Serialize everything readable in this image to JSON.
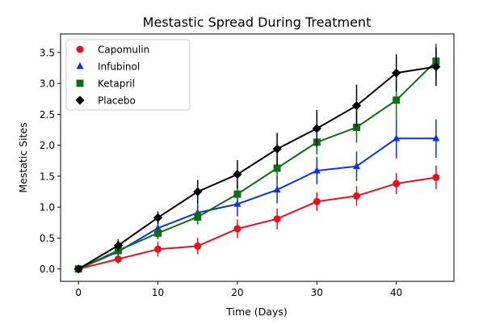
{
  "chart_data": {
    "type": "line",
    "title": "Mestastic Spread During Treatment",
    "xlabel": "Time (Days)",
    "ylabel": "Mestatic Sites",
    "xlim": [
      -2.25,
      47.25
    ],
    "ylim": [
      -0.2,
      3.8
    ],
    "x_ticks": [
      0,
      10,
      20,
      30,
      40
    ],
    "y_ticks": [
      0.0,
      0.5,
      1.0,
      1.5,
      2.0,
      2.5,
      3.0,
      3.5
    ],
    "x_tick_labels": [
      "0",
      "10",
      "20",
      "30",
      "40"
    ],
    "y_tick_labels": [
      "0.0",
      "0.5",
      "1.0",
      "1.5",
      "2.0",
      "2.5",
      "3.0",
      "3.5"
    ],
    "grid": false,
    "legend_position": "upper-left",
    "x": [
      0,
      5,
      10,
      15,
      20,
      25,
      30,
      35,
      40,
      45
    ],
    "series": [
      {
        "name": "Capomulin",
        "color": "#e8101f",
        "marker": "circle",
        "values": [
          0.0,
          0.16,
          0.32,
          0.37,
          0.65,
          0.81,
          1.09,
          1.18,
          1.38,
          1.48
        ],
        "errors": [
          0.0,
          0.07,
          0.12,
          0.13,
          0.15,
          0.17,
          0.15,
          0.16,
          0.17,
          0.19
        ]
      },
      {
        "name": "Infubinol",
        "color": "#0b32e8",
        "marker": "triangle",
        "values": [
          0.0,
          0.28,
          0.66,
          0.91,
          1.05,
          1.28,
          1.59,
          1.66,
          2.11,
          2.11
        ],
        "errors": [
          0.0,
          0.09,
          0.16,
          0.16,
          0.2,
          0.22,
          0.22,
          0.24,
          0.32,
          0.31
        ]
      },
      {
        "name": "Ketapril",
        "color": "#0f6e15",
        "marker": "square",
        "values": [
          0.0,
          0.3,
          0.58,
          0.84,
          1.21,
          1.63,
          2.05,
          2.29,
          2.73,
          3.36
        ],
        "errors": [
          0.0,
          0.1,
          0.1,
          0.12,
          0.16,
          0.18,
          0.2,
          0.25,
          0.3,
          0.28
        ]
      },
      {
        "name": "Placebo",
        "color": "#000000",
        "marker": "diamond",
        "values": [
          0.0,
          0.38,
          0.83,
          1.25,
          1.53,
          1.94,
          2.27,
          2.64,
          3.17,
          3.27
        ],
        "errors": [
          0.0,
          0.1,
          0.1,
          0.19,
          0.23,
          0.26,
          0.3,
          0.34,
          0.3,
          0.31
        ]
      }
    ]
  }
}
